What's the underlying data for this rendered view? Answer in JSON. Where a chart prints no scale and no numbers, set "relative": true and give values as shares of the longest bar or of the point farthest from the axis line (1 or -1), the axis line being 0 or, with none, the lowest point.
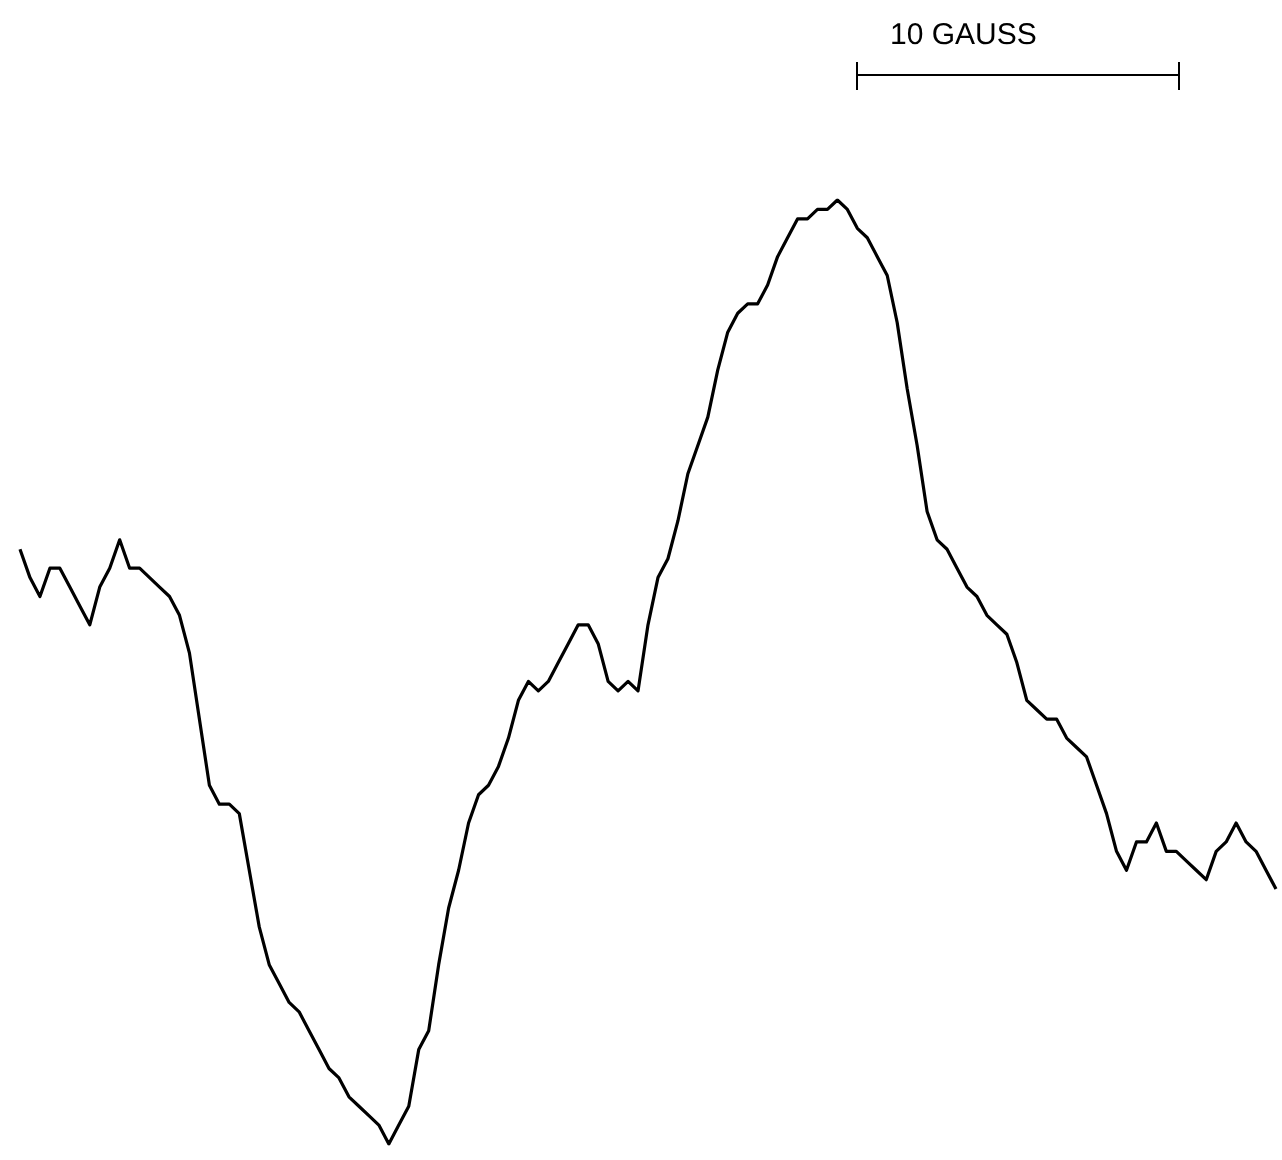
{
  "chart_data": {
    "type": "line",
    "relative": true,
    "annotations": [
      "10 GAUSS"
    ],
    "color": "#000000",
    "grid": false,
    "categories": [
      null,
      null,
      null,
      null,
      null,
      null,
      null,
      null,
      null,
      null,
      null,
      null,
      null,
      null,
      null,
      null,
      null,
      null,
      null,
      null,
      null,
      null,
      null,
      null,
      null,
      null,
      null,
      null,
      null,
      null,
      null,
      null,
      null,
      null,
      null,
      null,
      null,
      null,
      null,
      null,
      null,
      null,
      null,
      null,
      null,
      null,
      null,
      null,
      null,
      null,
      null,
      null,
      null,
      null,
      null,
      null,
      null,
      null,
      null,
      null,
      null,
      null,
      null,
      null,
      null,
      null,
      null,
      null,
      null,
      null,
      null,
      null,
      null,
      null,
      null,
      null,
      null,
      null,
      null,
      null,
      null,
      null,
      null,
      null,
      null,
      null,
      null,
      null,
      null,
      null,
      null,
      null,
      null,
      null,
      null,
      null,
      null,
      null,
      null,
      null,
      null,
      null,
      null,
      null,
      null,
      null,
      null,
      null,
      null,
      null,
      null,
      null,
      null,
      null,
      null,
      null,
      null,
      null,
      null,
      null,
      null,
      null,
      null,
      null,
      null,
      null,
      null
    ],
    "values": [
      0.63,
      0.6,
      0.58,
      0.61,
      0.61,
      0.59,
      0.57,
      0.55,
      0.59,
      0.61,
      0.64,
      0.61,
      0.61,
      0.6,
      0.59,
      0.58,
      0.56,
      0.52,
      0.45,
      0.38,
      0.36,
      0.36,
      0.35,
      0.29,
      0.23,
      0.19,
      0.17,
      0.15,
      0.14,
      0.12,
      0.1,
      0.08,
      0.07,
      0.05,
      0.04,
      0.03,
      0.02,
      0,
      0.02,
      0.04,
      0.1,
      0.12,
      0.19,
      0.25,
      0.29,
      0.34,
      0.37,
      0.38,
      0.4,
      0.43,
      0.47,
      0.49,
      0.48,
      0.49,
      0.51,
      0.53,
      0.55,
      0.55,
      0.53,
      0.49,
      0.48,
      0.49,
      0.48,
      0.55,
      0.6,
      0.62,
      0.66,
      0.71,
      0.74,
      0.77,
      0.82,
      0.86,
      0.88,
      0.89,
      0.89,
      0.91,
      0.94,
      0.96,
      0.98,
      0.98,
      0.99,
      0.99,
      1,
      0.99,
      0.97,
      0.96,
      0.94,
      0.92,
      0.87,
      0.8,
      0.74,
      0.67,
      0.64,
      0.63,
      0.61,
      0.59,
      0.58,
      0.56,
      0.55,
      0.54,
      0.51,
      0.47,
      0.46,
      0.45,
      0.45,
      0.43,
      0.42,
      0.41,
      0.38,
      0.35,
      0.31,
      0.29,
      0.32,
      0.32,
      0.34,
      0.31,
      0.31,
      0.3,
      0.29,
      0.28,
      0.31,
      0.32,
      0.34,
      0.32,
      0.31,
      0.29,
      0.27
    ]
  }
}
